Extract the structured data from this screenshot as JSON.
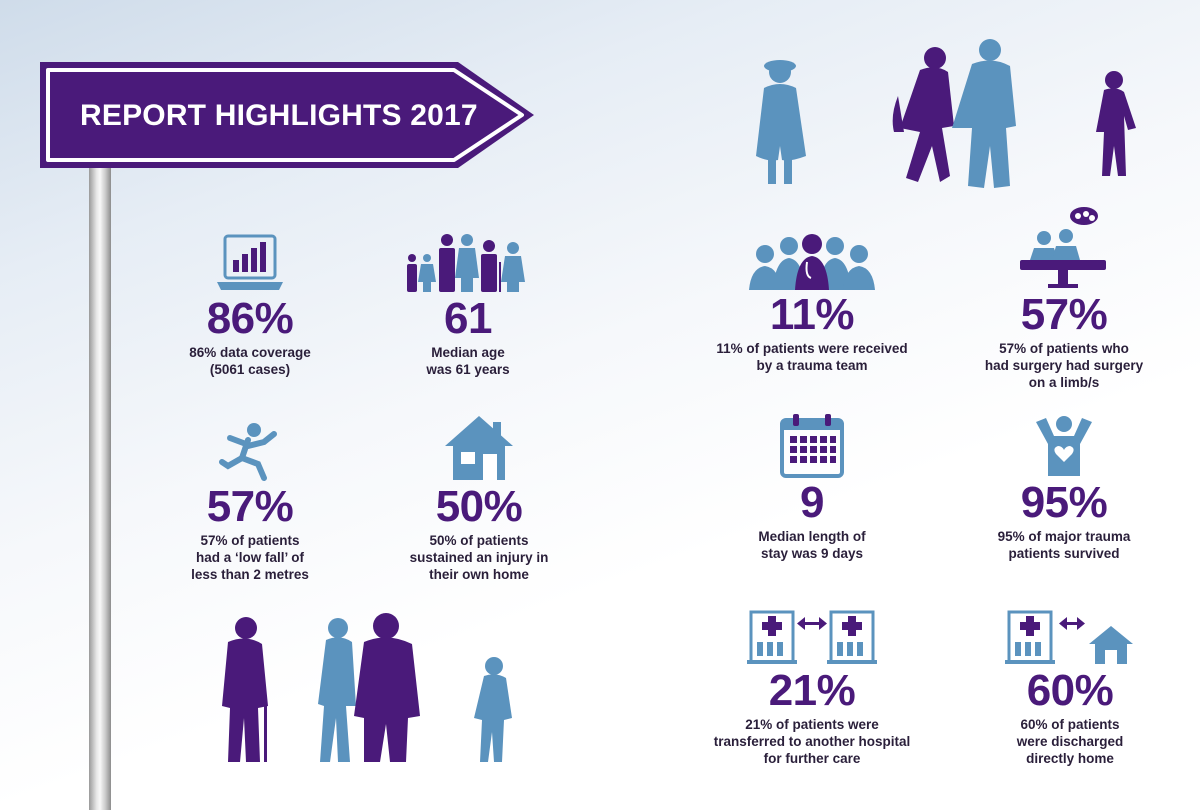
{
  "sign": {
    "title": "REPORT HIGHLIGHTS 2017"
  },
  "colors": {
    "purple": "#4a1a7a",
    "blue": "#5b93be",
    "text": "#2a1f3a"
  },
  "stats": [
    {
      "id": "coverage",
      "icon": "laptop-chart-icon",
      "value": "86%",
      "desc": [
        "86% data coverage",
        "(5061 cases)"
      ]
    },
    {
      "id": "age",
      "icon": "family-icon",
      "value": "61",
      "desc": [
        "Median age",
        "was 61 years"
      ]
    },
    {
      "id": "trauma-team",
      "icon": "medical-team-icon",
      "value": "11%",
      "desc": [
        "11% of patients were received",
        "by a trauma team"
      ]
    },
    {
      "id": "surgery",
      "icon": "surgery-icon",
      "value": "57%",
      "desc": [
        "57% of patients who",
        "had surgery had surgery",
        "on a limb/s"
      ]
    },
    {
      "id": "low-fall",
      "icon": "falling-person-icon",
      "value": "57%",
      "desc": [
        "57% of patients",
        "had a ‘low fall’ of",
        "less than 2 metres"
      ]
    },
    {
      "id": "home-injury",
      "icon": "house-icon",
      "value": "50%",
      "desc": [
        "50% of patients",
        "sustained an injury in",
        "their own home"
      ]
    },
    {
      "id": "stay",
      "icon": "calendar-icon",
      "value": "9",
      "desc": [
        "Median length of",
        "stay was 9 days"
      ]
    },
    {
      "id": "survived",
      "icon": "survivor-heart-icon",
      "value": "95%",
      "desc": [
        "95% of major trauma",
        "patients survived"
      ]
    },
    {
      "id": "transferred",
      "icon": "hospital-transfer-icon",
      "value": "21%",
      "desc": [
        "21% of patients were",
        "transferred to another hospital",
        "for further care"
      ]
    },
    {
      "id": "discharged",
      "icon": "hospital-home-icon",
      "value": "60%",
      "desc": [
        "60% of patients",
        "were discharged",
        "directly home"
      ]
    }
  ]
}
